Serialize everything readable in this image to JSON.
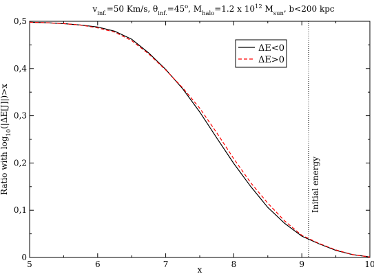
{
  "chart_data": {
    "type": "line",
    "title_parts": [
      {
        "t": "v",
        "s": "n"
      },
      {
        "t": "inf.",
        "s": "sub"
      },
      {
        "t": "=50 Km/s, ",
        "s": "n"
      },
      {
        "t": "θ",
        "s": "n"
      },
      {
        "t": "inf.",
        "s": "sub"
      },
      {
        "t": "=45",
        "s": "n"
      },
      {
        "t": "o",
        "s": "sup"
      },
      {
        "t": ", M",
        "s": "n"
      },
      {
        "t": "halo",
        "s": "sub"
      },
      {
        "t": "=1.2 x 10",
        "s": "n"
      },
      {
        "t": "12",
        "s": "sup"
      },
      {
        "t": " M",
        "s": "n"
      },
      {
        "t": "sun",
        "s": "sub"
      },
      {
        "t": ", b<200 kpc",
        "s": "n"
      }
    ],
    "xlabel": "x",
    "ylabel_parts": [
      {
        "t": "Ratio with log",
        "s": "n"
      },
      {
        "t": "10",
        "s": "sub"
      },
      {
        "t": "(|ΔE[J]|)>x",
        "s": "n"
      }
    ],
    "xlim": [
      5,
      10
    ],
    "ylim": [
      0,
      0.5
    ],
    "x_ticks": [
      "5",
      "6",
      "7",
      "8",
      "9",
      "10"
    ],
    "y_ticks": [
      "0",
      "0,1",
      "0,2",
      "0,3",
      "0,4",
      "0,5"
    ],
    "grid": false,
    "legend_position": "top-right",
    "series": [
      {
        "name": "ΔE<0",
        "color": "#000000",
        "dash": "solid",
        "x": [
          5.0,
          5.25,
          5.5,
          5.75,
          6.0,
          6.25,
          6.5,
          6.75,
          7.0,
          7.25,
          7.5,
          7.75,
          8.0,
          8.25,
          8.5,
          8.75,
          9.0,
          9.25,
          9.5,
          9.75,
          10.0
        ],
        "y": [
          0.498,
          0.497,
          0.495,
          0.492,
          0.488,
          0.479,
          0.462,
          0.433,
          0.398,
          0.357,
          0.308,
          0.253,
          0.199,
          0.15,
          0.106,
          0.072,
          0.045,
          0.029,
          0.015,
          0.006,
          0.001
        ]
      },
      {
        "name": "ΔE>0",
        "color": "#ff0000",
        "dash": "dashed",
        "x": [
          5.0,
          5.25,
          5.5,
          5.75,
          6.0,
          6.25,
          6.5,
          6.75,
          7.0,
          7.25,
          7.5,
          7.75,
          8.0,
          8.25,
          8.5,
          8.75,
          9.0,
          9.25,
          9.5,
          9.75,
          10.0
        ],
        "y": [
          0.498,
          0.497,
          0.495,
          0.492,
          0.486,
          0.477,
          0.459,
          0.431,
          0.397,
          0.359,
          0.316,
          0.264,
          0.209,
          0.158,
          0.115,
          0.077,
          0.047,
          0.03,
          0.016,
          0.006,
          0.001
        ]
      }
    ],
    "annotations": [
      {
        "text": "Initial energy",
        "x": 9.1,
        "style": "vertical-dotted-line"
      }
    ]
  }
}
